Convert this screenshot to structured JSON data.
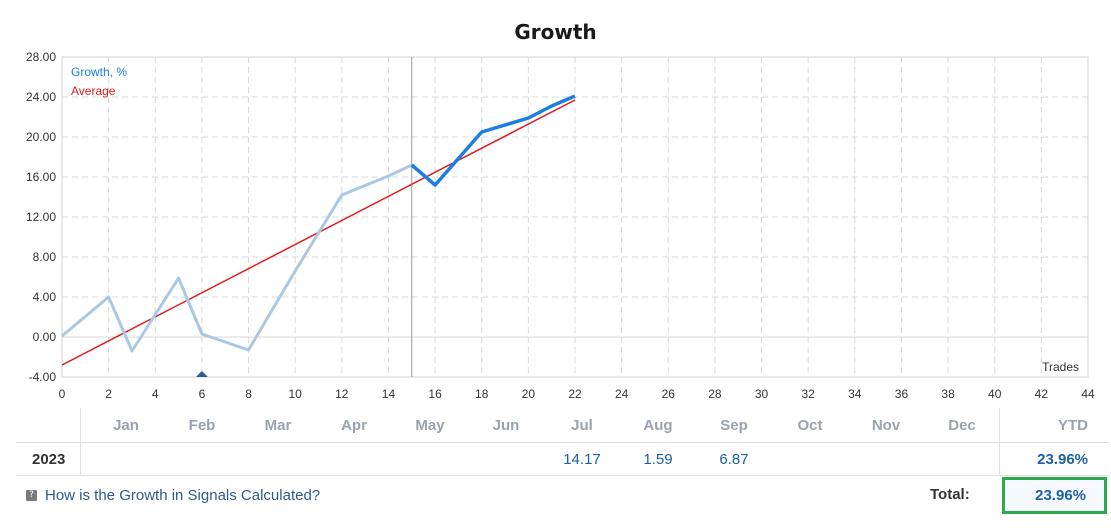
{
  "chart_data": {
    "type": "line",
    "title": "Growth",
    "xlabel": "Trades",
    "ylabel": "",
    "xlim": [
      0,
      44
    ],
    "ylim": [
      -4,
      28
    ],
    "x_ticks": [
      "0",
      "2",
      "4",
      "6",
      "8",
      "10",
      "12",
      "14",
      "16",
      "18",
      "20",
      "22",
      "24",
      "26",
      "28",
      "30",
      "32",
      "34",
      "36",
      "38",
      "40",
      "42",
      "44"
    ],
    "y_ticks": [
      "28.00",
      "24.00",
      "20.00",
      "16.00",
      "12.00",
      "8.00",
      "4.00",
      "0.00",
      "-4.00"
    ],
    "grid": true,
    "legend_position": "top-left",
    "divider_x": 15,
    "series": [
      {
        "name": "Growth, %",
        "color": "#1a7fe0",
        "past_color": "#a9c8e4",
        "x": [
          0,
          2,
          3,
          5,
          6,
          8,
          10,
          12,
          14,
          15,
          16,
          18,
          20,
          21,
          22
        ],
        "y": [
          0.1,
          4.0,
          -1.4,
          5.9,
          0.3,
          -1.3,
          6.6,
          14.2,
          16.1,
          17.2,
          15.2,
          20.5,
          21.9,
          23.1,
          24.1
        ]
      },
      {
        "name": "Average",
        "color": "#e01b1b",
        "x": [
          0,
          22
        ],
        "y": [
          -2.8,
          23.7
        ]
      }
    ],
    "marker": {
      "x": 6,
      "color": "#2d5f8a"
    }
  },
  "table": {
    "year": "2023",
    "months": [
      "Jan",
      "Feb",
      "Mar",
      "Apr",
      "May",
      "Jun",
      "Jul",
      "Aug",
      "Sep",
      "Oct",
      "Nov",
      "Dec"
    ],
    "values": [
      "",
      "",
      "",
      "",
      "",
      "",
      "14.17",
      "1.59",
      "6.87",
      "",
      "",
      ""
    ],
    "ytd_label": "YTD",
    "ytd_value": "23.96%"
  },
  "footer": {
    "link_text": "How is the Growth in Signals Calculated?",
    "icon_glyph": "?",
    "total_label": "Total:",
    "total_value": "23.96%",
    "highlight_color": "#2eaa4e"
  }
}
